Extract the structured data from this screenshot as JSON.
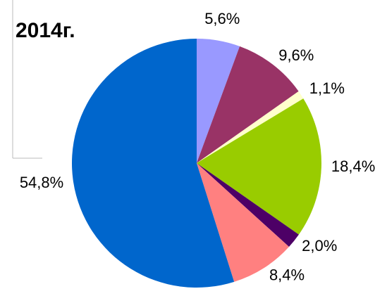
{
  "chart_data": {
    "type": "pie",
    "title": "2014г.",
    "values": [
      5.6,
      9.6,
      1.1,
      18.4,
      2.0,
      8.4,
      54.8
    ],
    "value_labels": [
      "5,6%",
      "9,6%",
      "1,1%",
      "18,4%",
      "2,0%",
      "8,4%",
      "54,8%"
    ],
    "colors": [
      "#9999ff",
      "#993366",
      "#ffffcc",
      "#99cc00",
      "#4d0066",
      "#ff8080",
      "#0066cc"
    ]
  }
}
